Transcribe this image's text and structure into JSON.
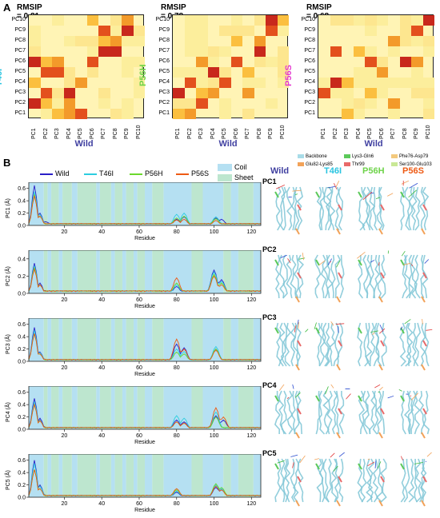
{
  "panel_a": {
    "letter": "A",
    "heatmaps": [
      {
        "rmsip": "RMSIP = 0.81",
        "mutant": "T46I",
        "mutant_color": "#29c4e0",
        "wild_label": "Wild",
        "cells": [
          [
            2,
            0
          ],
          [
            3,
            0
          ],
          [
            4,
            0
          ],
          [
            0,
            1
          ],
          [
            1,
            1
          ],
          [
            3,
            1
          ],
          [
            1,
            2
          ],
          [
            3,
            2
          ],
          [
            0,
            3
          ],
          [
            4,
            3
          ],
          [
            1,
            4
          ],
          [
            0,
            5
          ],
          [
            1,
            5
          ],
          [
            2,
            5
          ],
          [
            5,
            5
          ],
          [
            7,
            6
          ],
          [
            6,
            7
          ],
          [
            7,
            7
          ],
          [
            6,
            8
          ],
          [
            8,
            8
          ],
          [
            5,
            9
          ],
          [
            8,
            9
          ],
          [
            2,
            4
          ],
          [
            6,
            6
          ]
        ]
      },
      {
        "rmsip": "RMSIP = 0.78",
        "mutant": "P56H",
        "mutant_color": "#6ed34a",
        "wild_label": "Wild",
        "cells": [
          [
            0,
            0
          ],
          [
            1,
            0
          ],
          [
            2,
            1
          ],
          [
            0,
            2
          ],
          [
            2,
            2
          ],
          [
            3,
            2
          ],
          [
            4,
            3
          ],
          [
            3,
            4
          ],
          [
            6,
            4
          ],
          [
            2,
            5
          ],
          [
            5,
            5
          ],
          [
            7,
            6
          ],
          [
            5,
            7
          ],
          [
            7,
            7
          ],
          [
            8,
            8
          ],
          [
            8,
            9
          ],
          [
            9,
            9
          ],
          [
            6,
            2
          ],
          [
            1,
            3
          ]
        ]
      },
      {
        "rmsip": "RMSIP = 0.68",
        "mutant": "P56S",
        "mutant_color": "#e43ad0",
        "wild_label": "Wild",
        "cells": [
          [
            2,
            0
          ],
          [
            6,
            1
          ],
          [
            0,
            2
          ],
          [
            1,
            3
          ],
          [
            2,
            3
          ],
          [
            5,
            4
          ],
          [
            4,
            5
          ],
          [
            7,
            5
          ],
          [
            3,
            6
          ],
          [
            6,
            7
          ],
          [
            8,
            8
          ],
          [
            9,
            9
          ],
          [
            4,
            2
          ],
          [
            8,
            5
          ],
          [
            1,
            6
          ]
        ]
      }
    ],
    "row_labels": [
      "PC10",
      "PC9",
      "PC8",
      "PC7",
      "PC6",
      "PC5",
      "PC4",
      "PC3",
      "PC2",
      "PC1"
    ],
    "col_labels": [
      "PC1",
      "PC2",
      "PC3",
      "PC4",
      "PC5",
      "PC6",
      "PC7",
      "PC8",
      "PC9",
      "PC10"
    ]
  },
  "panel_b": {
    "letter": "B",
    "legend": {
      "series": [
        {
          "name": "Wild",
          "color": "#2a1fc7"
        },
        {
          "name": "T46I",
          "color": "#2ccde0"
        },
        {
          "name": "P56H",
          "color": "#6bd82d"
        },
        {
          "name": "P56S",
          "color": "#ee5a14"
        }
      ],
      "regions": [
        {
          "name": "Coil",
          "color": "#b5e0f2"
        },
        {
          "name": "Sheet",
          "color": "#bde6cf"
        }
      ]
    },
    "xlabel": "Residue",
    "struct_header": {
      "wild": "Wild",
      "t46i": "T46I",
      "p56h": "P56H",
      "p56s": "P56S"
    },
    "struct_legend": [
      {
        "name": "Backbone",
        "color": "#a8dce8"
      },
      {
        "name": "Lys3-Gln6",
        "color": "#5cc95a"
      },
      {
        "name": "Phe76-Asp79",
        "color": "#f3c97d"
      },
      {
        "name": "Glu82-Lys85",
        "color": "#f2a259"
      },
      {
        "name": "Thr99",
        "color": "#e86a6a"
      },
      {
        "name": "Ser100-Glu103",
        "color": "#c9e896"
      }
    ],
    "pc_labels": [
      "PC1",
      "PC2",
      "PC3",
      "PC4",
      "PC5"
    ]
  },
  "chart_data": [
    {
      "type": "line",
      "ylabel": "PC1 (Å)",
      "xlabel": "Residue",
      "x_ticks": [
        20,
        40,
        60,
        80,
        100,
        120
      ],
      "y_ticks": [
        "0.0",
        "0.2",
        "0.4",
        "0.6"
      ],
      "ylim": [
        0,
        0.7
      ],
      "series": [
        {
          "name": "Wild",
          "peaks": [
            [
              4,
              0.65
            ],
            [
              7,
              0.2
            ],
            [
              10,
              0.06
            ],
            [
              80,
              0.1
            ],
            [
              84,
              0.14
            ],
            [
              101,
              0.12
            ],
            [
              104,
              0.1
            ]
          ]
        },
        {
          "name": "T46I",
          "peaks": [
            [
              4,
              0.55
            ],
            [
              7,
              0.18
            ],
            [
              80,
              0.18
            ],
            [
              84,
              0.2
            ],
            [
              101,
              0.14
            ]
          ]
        },
        {
          "name": "P56H",
          "peaks": [
            [
              4,
              0.5
            ],
            [
              7,
              0.15
            ],
            [
              80,
              0.12
            ],
            [
              84,
              0.15
            ],
            [
              101,
              0.11
            ]
          ]
        },
        {
          "name": "P56S",
          "peaks": [
            [
              4,
              0.48
            ],
            [
              7,
              0.15
            ],
            [
              80,
              0.09
            ],
            [
              84,
              0.1
            ],
            [
              101,
              0.08
            ]
          ]
        }
      ]
    },
    {
      "type": "line",
      "ylabel": "PC2 (Å)",
      "xlabel": "Residue",
      "x_ticks": [
        20,
        40,
        60,
        80,
        100,
        120
      ],
      "y_ticks": [
        "0.0",
        "0.2",
        "0.4"
      ],
      "ylim": [
        0,
        0.5
      ],
      "series": [
        {
          "name": "Wild",
          "peaks": [
            [
              4,
              0.35
            ],
            [
              7,
              0.12
            ],
            [
              80,
              0.08
            ],
            [
              100,
              0.27
            ],
            [
              104,
              0.16
            ]
          ]
        },
        {
          "name": "T46I",
          "peaks": [
            [
              4,
              0.32
            ],
            [
              7,
              0.1
            ],
            [
              80,
              0.1
            ],
            [
              100,
              0.25
            ],
            [
              104,
              0.14
            ]
          ]
        },
        {
          "name": "P56H",
          "peaks": [
            [
              4,
              0.3
            ],
            [
              7,
              0.1
            ],
            [
              80,
              0.12
            ],
            [
              100,
              0.22
            ],
            [
              104,
              0.12
            ]
          ]
        },
        {
          "name": "P56S",
          "peaks": [
            [
              4,
              0.28
            ],
            [
              7,
              0.1
            ],
            [
              80,
              0.18
            ],
            [
              100,
              0.2
            ],
            [
              104,
              0.1
            ]
          ]
        }
      ]
    },
    {
      "type": "line",
      "ylabel": "PC3 (Å)",
      "xlabel": "Residue",
      "x_ticks": [
        20,
        40,
        60,
        80,
        100,
        120
      ],
      "y_ticks": [
        "0.0",
        "0.2",
        "0.4",
        "0.6"
      ],
      "ylim": [
        0,
        0.7
      ],
      "series": [
        {
          "name": "Wild",
          "peaks": [
            [
              4,
              0.55
            ],
            [
              7,
              0.15
            ],
            [
              80,
              0.28
            ],
            [
              84,
              0.22
            ],
            [
              101,
              0.2
            ]
          ]
        },
        {
          "name": "T46I",
          "peaks": [
            [
              4,
              0.5
            ],
            [
              7,
              0.14
            ],
            [
              80,
              0.2
            ],
            [
              84,
              0.16
            ],
            [
              101,
              0.24
            ]
          ]
        },
        {
          "name": "P56H",
          "peaks": [
            [
              4,
              0.45
            ],
            [
              7,
              0.12
            ],
            [
              80,
              0.15
            ],
            [
              84,
              0.12
            ],
            [
              101,
              0.2
            ]
          ]
        },
        {
          "name": "P56S",
          "peaks": [
            [
              4,
              0.45
            ],
            [
              7,
              0.12
            ],
            [
              80,
              0.36
            ],
            [
              84,
              0.2
            ],
            [
              101,
              0.18
            ]
          ]
        }
      ]
    },
    {
      "type": "line",
      "ylabel": "PC4 (Å)",
      "xlabel": "Residue",
      "x_ticks": [
        20,
        40,
        60,
        80,
        100,
        120
      ],
      "y_ticks": [
        "0.0",
        "0.2",
        "0.4",
        "0.6"
      ],
      "ylim": [
        0,
        0.7
      ],
      "series": [
        {
          "name": "Wild",
          "peaks": [
            [
              4,
              0.5
            ],
            [
              7,
              0.18
            ],
            [
              80,
              0.15
            ],
            [
              84,
              0.12
            ],
            [
              101,
              0.22
            ],
            [
              105,
              0.15
            ]
          ]
        },
        {
          "name": "T46I",
          "peaks": [
            [
              4,
              0.45
            ],
            [
              7,
              0.15
            ],
            [
              80,
              0.22
            ],
            [
              84,
              0.18
            ],
            [
              101,
              0.28
            ]
          ]
        },
        {
          "name": "P56H",
          "peaks": [
            [
              4,
              0.4
            ],
            [
              7,
              0.14
            ],
            [
              80,
              0.12
            ],
            [
              84,
              0.1
            ],
            [
              101,
              0.2
            ]
          ]
        },
        {
          "name": "P56S",
          "peaks": [
            [
              4,
              0.4
            ],
            [
              7,
              0.14
            ],
            [
              80,
              0.12
            ],
            [
              84,
              0.1
            ],
            [
              101,
              0.35
            ],
            [
              105,
              0.2
            ]
          ]
        }
      ]
    },
    {
      "type": "line",
      "ylabel": "PC5 (Å)",
      "xlabel": "Residue",
      "x_ticks": [
        20,
        40,
        60,
        80,
        100,
        120
      ],
      "y_ticks": [
        "0.0",
        "0.2",
        "0.4",
        "0.6"
      ],
      "ylim": [
        0,
        0.7
      ],
      "series": [
        {
          "name": "Wild",
          "peaks": [
            [
              4,
              0.6
            ],
            [
              7,
              0.2
            ],
            [
              80,
              0.08
            ],
            [
              101,
              0.16
            ],
            [
              104,
              0.12
            ]
          ]
        },
        {
          "name": "T46I",
          "peaks": [
            [
              4,
              0.55
            ],
            [
              7,
              0.18
            ],
            [
              80,
              0.1
            ],
            [
              101,
              0.2
            ],
            [
              104,
              0.14
            ]
          ]
        },
        {
          "name": "P56H",
          "peaks": [
            [
              4,
              0.45
            ],
            [
              7,
              0.14
            ],
            [
              80,
              0.12
            ],
            [
              101,
              0.22
            ],
            [
              104,
              0.16
            ]
          ]
        },
        {
          "name": "P56S",
          "peaks": [
            [
              4,
              0.45
            ],
            [
              7,
              0.14
            ],
            [
              80,
              0.14
            ],
            [
              101,
              0.18
            ],
            [
              104,
              0.12
            ]
          ]
        }
      ]
    }
  ],
  "region_bands": {
    "coil": [
      [
        1,
        9
      ],
      [
        11,
        13
      ],
      [
        17,
        19
      ],
      [
        24,
        27
      ],
      [
        37,
        39
      ],
      [
        45,
        47
      ],
      [
        51,
        53
      ],
      [
        57,
        59
      ],
      [
        63,
        67
      ],
      [
        73,
        88
      ],
      [
        94,
        105
      ],
      [
        109,
        113
      ],
      [
        121,
        125
      ]
    ],
    "sheet": [
      [
        9,
        11
      ],
      [
        13,
        17
      ],
      [
        19,
        24
      ],
      [
        27,
        37
      ],
      [
        39,
        45
      ],
      [
        47,
        51
      ],
      [
        53,
        57
      ],
      [
        59,
        63
      ],
      [
        67,
        73
      ],
      [
        88,
        94
      ],
      [
        105,
        109
      ],
      [
        113,
        121
      ]
    ]
  }
}
